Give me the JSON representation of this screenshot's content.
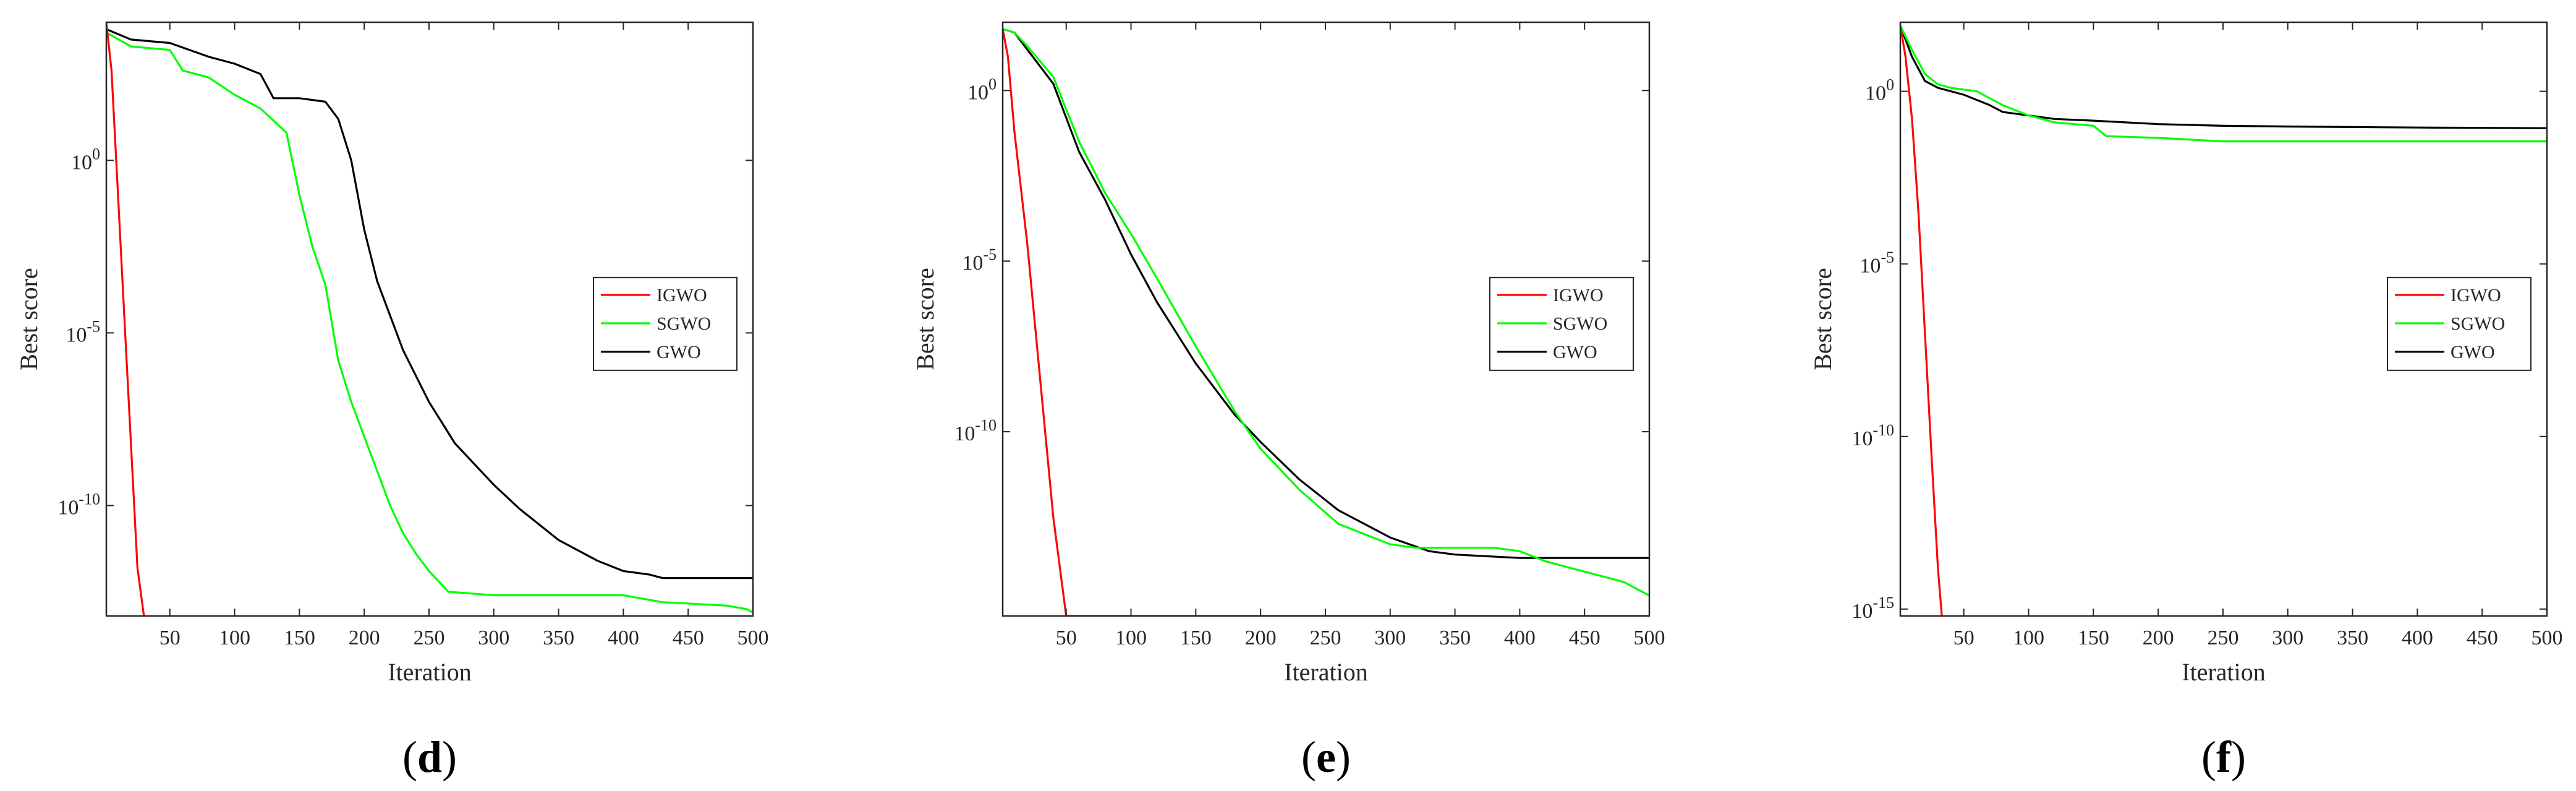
{
  "chart_data": [
    {
      "type": "line",
      "caption": "d",
      "xlabel": "Iteration",
      "ylabel": "Best score",
      "xlim": [
        1,
        500
      ],
      "ylim_log10": [
        -13.2,
        4.0
      ],
      "xticks": [
        50,
        100,
        150,
        200,
        250,
        300,
        350,
        400,
        450,
        500
      ],
      "yticks": [
        {
          "exp": 0,
          "label": "10",
          "sup": "0"
        },
        {
          "exp": -5,
          "label": "10",
          "sup": "-5"
        },
        {
          "exp": -10,
          "label": "10",
          "sup": "-10"
        }
      ],
      "legend": [
        "IGWO",
        "SGWO",
        "GWO"
      ],
      "series": [
        {
          "name": "IGWO",
          "color": "#ff0000",
          "x": [
            1,
            5,
            10,
            15,
            20,
            25,
            30
          ],
          "y_log10": [
            4.0,
            2.6,
            -1.0,
            -4.6,
            -8.2,
            -11.8,
            -13.2
          ]
        },
        {
          "name": "SGWO",
          "color": "#00ff00",
          "x": [
            1,
            20,
            50,
            60,
            80,
            100,
            120,
            140,
            150,
            160,
            170,
            180,
            190,
            200,
            210,
            220,
            230,
            240,
            250,
            260,
            265,
            300,
            350,
            400,
            430,
            480,
            495,
            500
          ],
          "y_log10": [
            3.7,
            3.3,
            3.2,
            2.6,
            2.4,
            1.9,
            1.5,
            0.8,
            -1.0,
            -2.5,
            -3.6,
            -5.8,
            -7.0,
            -8.0,
            -9.0,
            -10.0,
            -10.8,
            -11.4,
            -11.9,
            -12.3,
            -12.5,
            -12.6,
            -12.6,
            -12.6,
            -12.8,
            -12.9,
            -13.0,
            -13.1
          ]
        },
        {
          "name": "GWO",
          "color": "#000000",
          "x": [
            1,
            20,
            50,
            80,
            100,
            120,
            130,
            150,
            170,
            180,
            190,
            200,
            210,
            220,
            230,
            250,
            270,
            300,
            320,
            350,
            380,
            400,
            420,
            430,
            460,
            500
          ],
          "y_log10": [
            3.8,
            3.5,
            3.4,
            3.0,
            2.8,
            2.5,
            1.8,
            1.8,
            1.7,
            1.2,
            0.0,
            -2.0,
            -3.5,
            -4.5,
            -5.5,
            -7.0,
            -8.2,
            -9.4,
            -10.1,
            -11.0,
            -11.6,
            -11.9,
            -12.0,
            -12.1,
            -12.1,
            -12.1
          ]
        }
      ]
    },
    {
      "type": "line",
      "caption": "e",
      "xlabel": "Iteration",
      "ylabel": "Best score",
      "xlim": [
        1,
        500
      ],
      "ylim_log10": [
        -15.4,
        2.0
      ],
      "xticks": [
        50,
        100,
        150,
        200,
        250,
        300,
        350,
        400,
        450,
        500
      ],
      "yticks": [
        {
          "exp": 0,
          "label": "10",
          "sup": "0"
        },
        {
          "exp": -5,
          "label": "10",
          "sup": "-5"
        },
        {
          "exp": -10,
          "label": "10",
          "sup": "-10"
        }
      ],
      "legend": [
        "IGWO",
        "SGWO",
        "GWO"
      ],
      "series": [
        {
          "name": "IGWO",
          "color": "#ff0000",
          "x": [
            1,
            5,
            10,
            20,
            30,
            40,
            50,
            60,
            100,
            200,
            300,
            400,
            500
          ],
          "y_log10": [
            1.8,
            1.0,
            -1.2,
            -4.5,
            -8.5,
            -12.5,
            -15.4,
            -15.4,
            -15.4,
            -15.4,
            -15.4,
            -15.4,
            -15.4
          ]
        },
        {
          "name": "SGWO",
          "color": "#00ff00",
          "x": [
            1,
            10,
            20,
            40,
            60,
            80,
            100,
            120,
            150,
            180,
            200,
            230,
            260,
            300,
            320,
            350,
            380,
            400,
            420,
            440,
            460,
            480,
            500
          ],
          "y_log10": [
            1.8,
            1.7,
            1.3,
            0.4,
            -1.5,
            -3.0,
            -4.2,
            -5.5,
            -7.5,
            -9.4,
            -10.5,
            -11.7,
            -12.7,
            -13.3,
            -13.4,
            -13.4,
            -13.4,
            -13.5,
            -13.8,
            -14.0,
            -14.2,
            -14.4,
            -14.8
          ]
        },
        {
          "name": "GWO",
          "color": "#000000",
          "x": [
            1,
            10,
            20,
            40,
            60,
            80,
            100,
            120,
            150,
            180,
            200,
            230,
            260,
            300,
            330,
            350,
            400,
            450,
            500
          ],
          "y_log10": [
            1.8,
            1.7,
            1.2,
            0.2,
            -1.8,
            -3.2,
            -4.8,
            -6.2,
            -8.0,
            -9.5,
            -10.3,
            -11.4,
            -12.3,
            -13.1,
            -13.5,
            -13.6,
            -13.7,
            -13.7,
            -13.7
          ]
        }
      ]
    },
    {
      "type": "line",
      "caption": "f",
      "xlabel": "Iteration",
      "ylabel": "Best score",
      "xlim": [
        1,
        500
      ],
      "ylim_log10": [
        -15.2,
        2.0
      ],
      "xticks": [
        50,
        100,
        150,
        200,
        250,
        300,
        350,
        400,
        450,
        500
      ],
      "yticks": [
        {
          "exp": 0,
          "label": "10",
          "sup": "0"
        },
        {
          "exp": -5,
          "label": "10",
          "sup": "-5"
        },
        {
          "exp": -10,
          "label": "10",
          "sup": "-10"
        },
        {
          "exp": -15,
          "label": "10",
          "sup": "-15"
        }
      ],
      "legend": [
        "IGWO",
        "SGWO",
        "GWO"
      ],
      "series": [
        {
          "name": "IGWO",
          "color": "#ff0000",
          "x": [
            1,
            5,
            10,
            15,
            20,
            25,
            30,
            33
          ],
          "y_log10": [
            1.9,
            1.0,
            -0.8,
            -3.5,
            -7.0,
            -10.5,
            -13.8,
            -15.2
          ]
        },
        {
          "name": "SGWO",
          "color": "#00ff00",
          "x": [
            1,
            10,
            20,
            30,
            40,
            60,
            80,
            100,
            120,
            150,
            160,
            200,
            250,
            300,
            400,
            500
          ],
          "y_log10": [
            1.9,
            1.2,
            0.5,
            0.2,
            0.1,
            0.0,
            -0.4,
            -0.7,
            -0.9,
            -1.0,
            -1.3,
            -1.35,
            -1.45,
            -1.45,
            -1.45,
            -1.45
          ]
        },
        {
          "name": "GWO",
          "color": "#000000",
          "x": [
            1,
            10,
            20,
            30,
            50,
            70,
            80,
            100,
            120,
            150,
            200,
            250,
            300,
            400,
            500
          ],
          "y_log10": [
            1.9,
            1.0,
            0.3,
            0.1,
            -0.1,
            -0.4,
            -0.6,
            -0.7,
            -0.8,
            -0.85,
            -0.95,
            -1.0,
            -1.02,
            -1.05,
            -1.07
          ]
        }
      ]
    }
  ]
}
